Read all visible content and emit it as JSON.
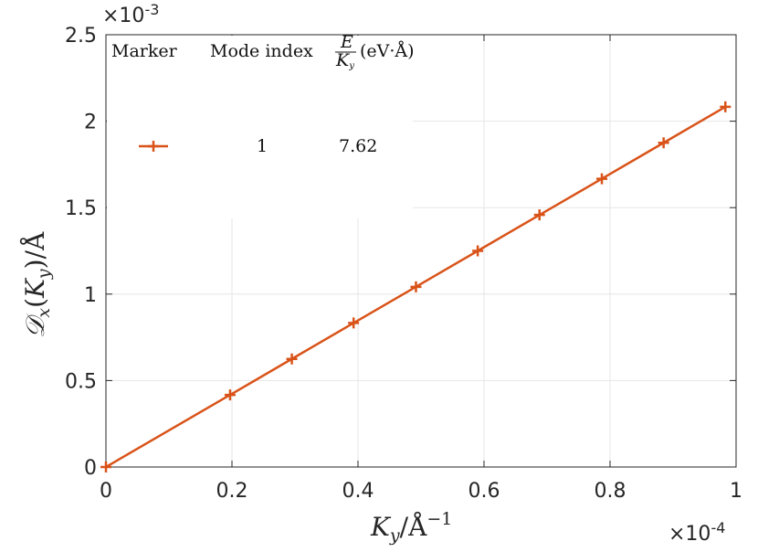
{
  "chart_data": {
    "type": "line",
    "xlabel": "K_y/Å^{-1}",
    "ylabel": "𝒟_x(K_y)/Å",
    "x_exponent": "×10^{-4}",
    "y_exponent": "×10^{-3}",
    "xlim": [
      0,
      1
    ],
    "ylim": [
      0,
      2.5
    ],
    "x_ticks": [
      "0",
      "0.2",
      "0.4",
      "0.6",
      "0.8",
      "1"
    ],
    "y_ticks": [
      "0",
      "0.5",
      "1",
      "1.5",
      "2",
      "2.5"
    ],
    "grid": true,
    "legend_position": "top-left",
    "legend_headers": {
      "marker": "Marker",
      "mode": "Mode index",
      "ratio": "E/K_y (eV·Å)"
    },
    "series": [
      {
        "mode_index": "1",
        "ratio_value": "7.62",
        "color": "#D95319",
        "marker": "plus",
        "x": [
          0,
          0.197,
          0.295,
          0.393,
          0.492,
          0.59,
          0.688,
          0.787,
          0.885,
          0.983
        ],
        "y": [
          0,
          0.417,
          0.625,
          0.833,
          1.042,
          1.25,
          1.458,
          1.667,
          1.875,
          2.083
        ]
      }
    ]
  }
}
